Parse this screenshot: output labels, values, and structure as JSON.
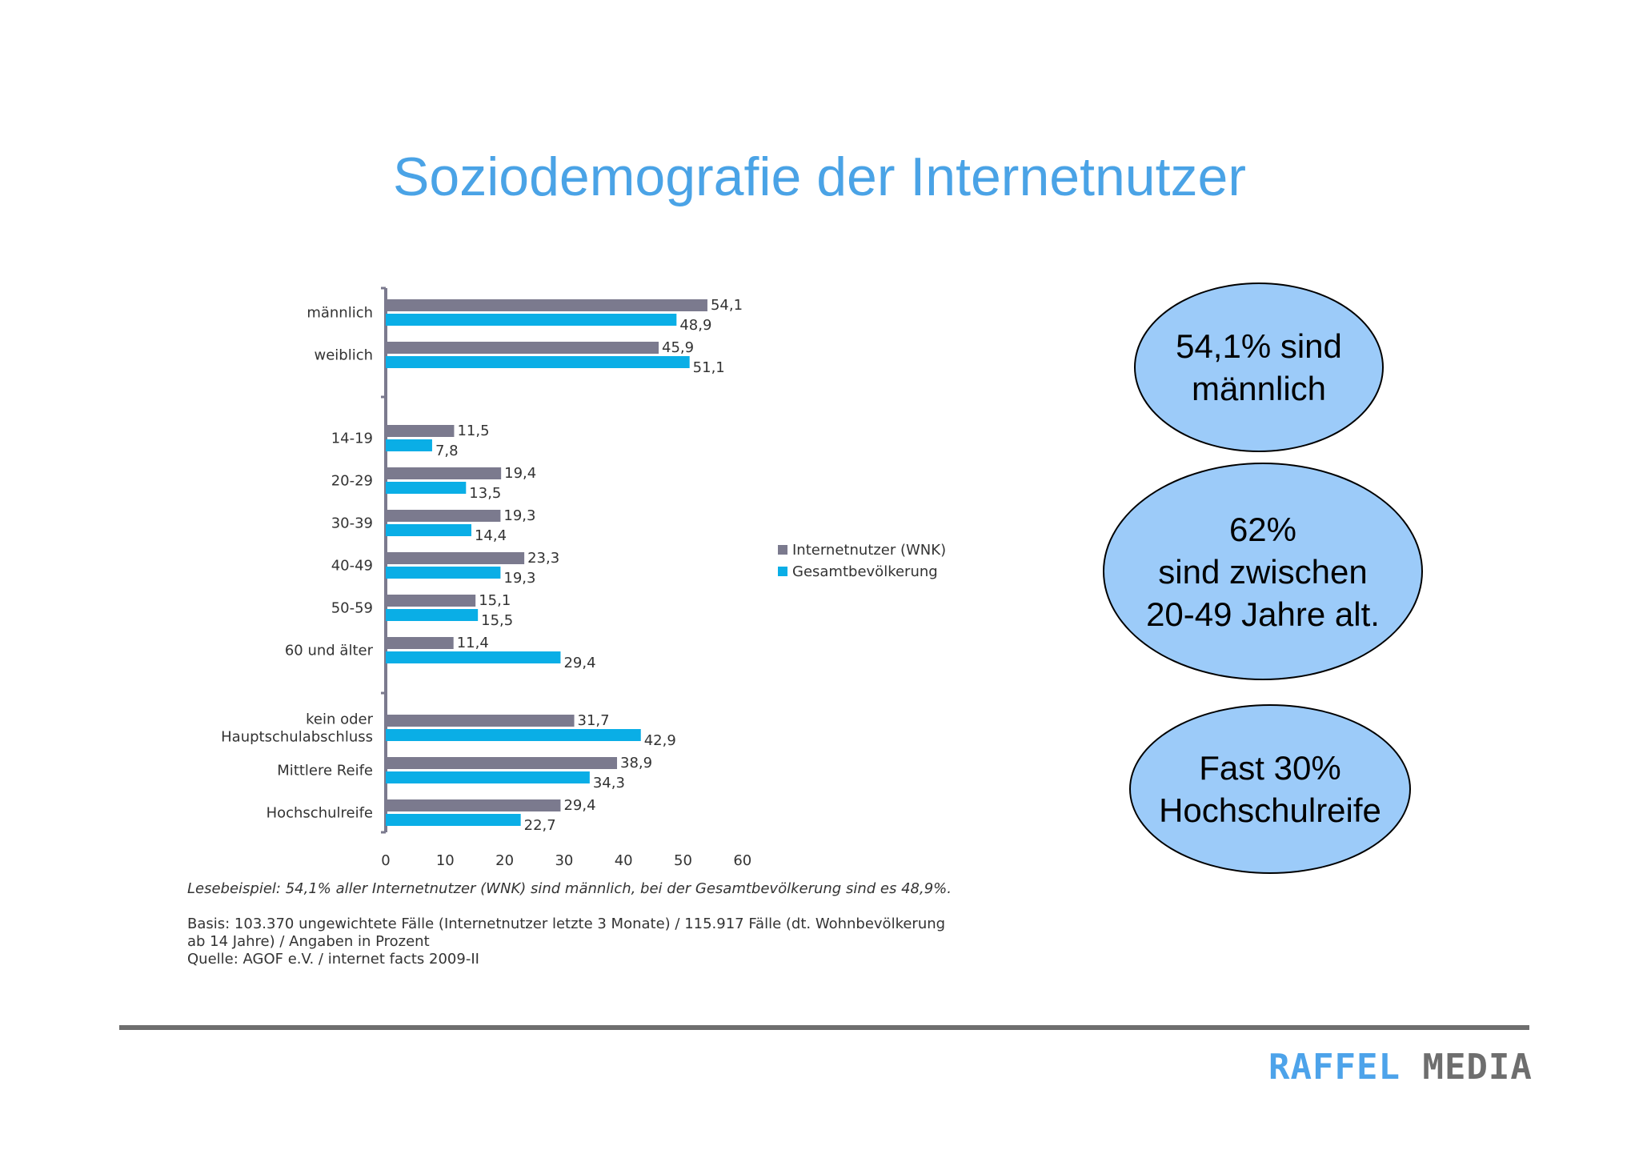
{
  "title": "Soziodemografie der Internetnutzer",
  "chart_data": {
    "type": "bar",
    "orientation": "horizontal",
    "categories": [
      "männlich",
      "weiblich",
      "14-19",
      "20-29",
      "30-39",
      "40-49",
      "50-59",
      "60 und älter",
      "kein oder Hauptschulabschluss",
      "Mittlere Reife",
      "Hochschulreife"
    ],
    "category_label_lines": [
      [
        "männlich"
      ],
      [
        "weiblich"
      ],
      [
        "14-19"
      ],
      [
        "20-29"
      ],
      [
        "30-39"
      ],
      [
        "40-49"
      ],
      [
        "50-59"
      ],
      [
        "60 und älter"
      ],
      [
        "kein oder",
        "Hauptschulabschluss"
      ],
      [
        "Mittlere Reife"
      ],
      [
        "Hochschulreife"
      ]
    ],
    "groups": [
      [
        0,
        1
      ],
      [
        2,
        3,
        4,
        5,
        6,
        7
      ],
      [
        8,
        9,
        10
      ]
    ],
    "series": [
      {
        "name": "Internetnutzer (WNK)",
        "color": "#7b7a8e",
        "values": [
          54.1,
          45.9,
          11.5,
          19.4,
          19.3,
          23.3,
          15.1,
          11.4,
          31.7,
          38.9,
          29.4
        ],
        "labels": [
          "54,1",
          "45,9",
          "11,5",
          "19,4",
          "19,3",
          "23,3",
          "15,1",
          "11,4",
          "31,7",
          "38,9",
          "29,4"
        ]
      },
      {
        "name": "Gesamtbevölkerung",
        "color": "#0aaee6",
        "values": [
          48.9,
          51.1,
          7.8,
          13.5,
          14.4,
          19.3,
          15.5,
          29.4,
          42.9,
          34.3,
          22.7
        ],
        "labels": [
          "48,9",
          "51,1",
          "7,8",
          "13,5",
          "14,4",
          "19,3",
          "15,5",
          "29,4",
          "42,9",
          "34,3",
          "22,7"
        ]
      }
    ],
    "xlim": [
      0,
      60
    ],
    "xticks": [
      "0",
      "10",
      "20",
      "30",
      "40",
      "50",
      "60"
    ],
    "legend_position": "right",
    "grid": false
  },
  "notes": {
    "example": "Lesebeispiel: 54,1% aller Internetnutzer (WNK) sind männlich, bei der Gesamtbevölkerung sind es 48,9%.",
    "basis_line1": "Basis: 103.370 ungewichtete Fälle (Internetnutzer letzte 3 Monate) / 115.917 Fälle (dt. Wohnbevölkerung",
    "basis_line2": "ab 14 Jahre) / Angaben in Prozent",
    "source": "Quelle: AGOF e.V. / internet facts 2009-II"
  },
  "bubbles": {
    "male": {
      "line1": "54,1% sind",
      "line2": "männlich"
    },
    "age": {
      "line1": "62%",
      "line2": "sind zwischen",
      "line3": "20-49 Jahre alt."
    },
    "education": {
      "line1": "Fast 30%",
      "line2": "Hochschulreife"
    }
  },
  "logo": {
    "part1": "RAFFEL",
    "part2": "MEDIA"
  }
}
